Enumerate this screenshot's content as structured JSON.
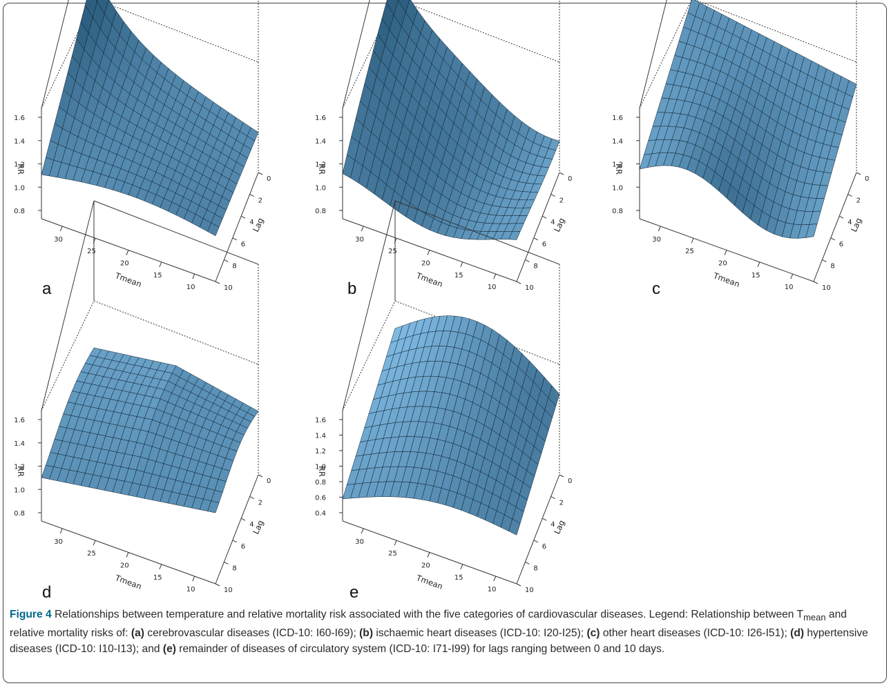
{
  "figure": {
    "panels": [
      {
        "id": "a",
        "label": "a",
        "zlabel": "RR",
        "xlabel": "Tmean",
        "ylabel": "Lag",
        "zticks": [
          "0.8",
          "1.0",
          "1.2",
          "1.4",
          "1.6"
        ],
        "xticks": [
          "30",
          "25",
          "20",
          "15",
          "10"
        ],
        "yticks": [
          "0",
          "2",
          "4",
          "6",
          "8",
          "10"
        ],
        "surface": "a"
      },
      {
        "id": "b",
        "label": "b",
        "zlabel": "RR",
        "xlabel": "Tmean",
        "ylabel": "Lag",
        "zticks": [
          "0.8",
          "1.0",
          "1.2",
          "1.4",
          "1.6"
        ],
        "xticks": [
          "30",
          "25",
          "20",
          "15",
          "10"
        ],
        "yticks": [
          "0",
          "2",
          "4",
          "6",
          "8",
          "10"
        ],
        "surface": "b"
      },
      {
        "id": "c",
        "label": "c",
        "zlabel": "RR",
        "xlabel": "Tmean",
        "ylabel": "Lag",
        "zticks": [
          "0.8",
          "1.0",
          "1.2",
          "1.4",
          "1.6"
        ],
        "xticks": [
          "30",
          "25",
          "20",
          "15",
          "10"
        ],
        "yticks": [
          "0",
          "2",
          "4",
          "6",
          "8",
          "10"
        ],
        "surface": "c"
      },
      {
        "id": "d",
        "label": "d",
        "zlabel": "RR",
        "xlabel": "Tmean",
        "ylabel": "Lag",
        "zticks": [
          "0.8",
          "1.0",
          "1.2",
          "1.4",
          "1.6"
        ],
        "xticks": [
          "30",
          "25",
          "20",
          "15",
          "10"
        ],
        "yticks": [
          "0",
          "2",
          "4",
          "6",
          "8",
          "10"
        ],
        "surface": "d"
      },
      {
        "id": "e",
        "label": "e",
        "zlabel": "RR",
        "xlabel": "Tmean",
        "ylabel": "Lag",
        "zticks": [
          "0.4",
          "0.6",
          "0.8",
          "1.0",
          "1.2",
          "1.4",
          "1.6"
        ],
        "xticks": [
          "30",
          "25",
          "20",
          "15",
          "10"
        ],
        "yticks": [
          "0",
          "2",
          "4",
          "6",
          "8",
          "10"
        ],
        "surface": "e"
      }
    ],
    "colors": {
      "surface_light": "#8cc8f2",
      "surface_dark": "#2e5f80",
      "mesh": "#0b1c2a",
      "box": "#333333"
    }
  },
  "caption": {
    "fig_label": "Figure 4",
    "title": " Relationships between temperature and relative mortality risk associated with the five categories of cardiovascular diseases. Legend: Relationship between T",
    "subscript": "mean",
    "after_sub": " and relative mortality risks of: ",
    "a_tag": "(a)",
    "a_text": " cerebrovascular diseases (ICD-10: I60-I69); ",
    "b_tag": "(b)",
    "b_text": " ischaemic heart diseases (ICD-10: I20-I25); ",
    "c_tag": "(c)",
    "c_text": " other heart diseases (ICD-10: I26-I51); ",
    "d_tag": "(d)",
    "d_text": " hypertensive diseases (ICD-10: I10-I13); and ",
    "e_tag": "(e)",
    "e_text": " remainder of diseases of circulatory system (ICD-10: I71-I99) for lags ranging between 0 and 10 days."
  }
}
